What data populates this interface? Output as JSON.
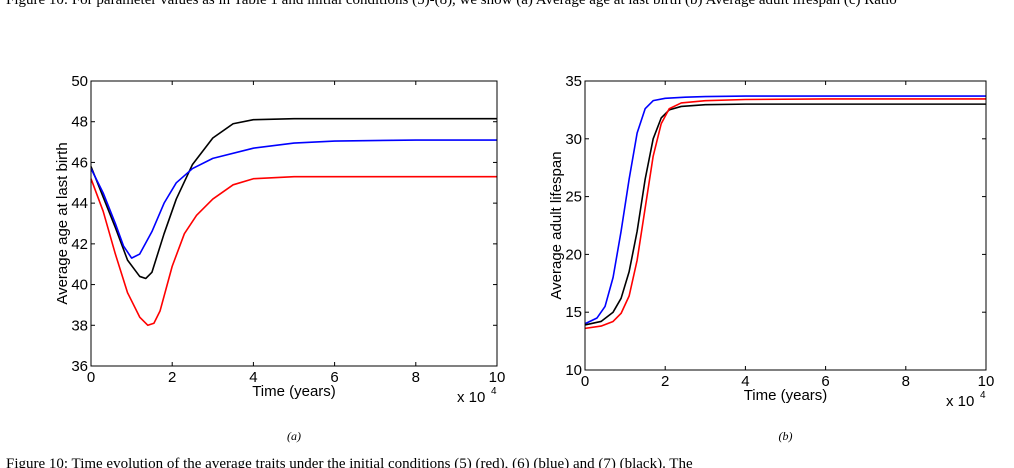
{
  "top_caption_text": "Figure 10: For parameter values as in Table 1 and initial conditions (5)-(8), we show (a) Average age at last birth (b) Average adult lifespan (c) Ratio",
  "bottom_caption_text": "Figure 10: Time evolution of the average traits under the initial conditions (5) (red), (6) (blue) and (7) (black). The",
  "chart_data": [
    {
      "panel": "(a)",
      "type": "line",
      "xlabel": "Time (years)",
      "ylabel": "Average age at last birth",
      "x_multiplier_label": "x 10",
      "x_multiplier_exp": "4",
      "xlim": [
        0,
        10
      ],
      "ylim": [
        36,
        50
      ],
      "xticks": [
        0,
        2,
        4,
        6,
        8,
        10
      ],
      "yticks": [
        36,
        38,
        40,
        42,
        44,
        46,
        48,
        50
      ],
      "grid": false,
      "series": [
        {
          "color": "#000000",
          "x": [
            0,
            0.3,
            0.6,
            0.9,
            1.2,
            1.35,
            1.5,
            1.8,
            2.1,
            2.5,
            3.0,
            3.5,
            4.0,
            5,
            6,
            8,
            10
          ],
          "y": [
            45.8,
            44.3,
            42.8,
            41.2,
            40.4,
            40.3,
            40.6,
            42.5,
            44.2,
            45.9,
            47.2,
            47.9,
            48.1,
            48.15,
            48.15,
            48.15,
            48.15
          ]
        },
        {
          "color": "#0000ff",
          "x": [
            0,
            0.3,
            0.6,
            0.8,
            1.0,
            1.2,
            1.5,
            1.8,
            2.1,
            2.5,
            3.0,
            4.0,
            5,
            6,
            8,
            10
          ],
          "y": [
            45.7,
            44.5,
            43.0,
            41.9,
            41.3,
            41.5,
            42.6,
            44.0,
            45.0,
            45.7,
            46.2,
            46.7,
            46.95,
            47.05,
            47.1,
            47.1
          ]
        },
        {
          "color": "#ff0000",
          "x": [
            0,
            0.3,
            0.6,
            0.9,
            1.2,
            1.4,
            1.55,
            1.7,
            2.0,
            2.3,
            2.6,
            3.0,
            3.5,
            4.0,
            5,
            6,
            8,
            10
          ],
          "y": [
            45.2,
            43.6,
            41.5,
            39.6,
            38.4,
            38.0,
            38.1,
            38.7,
            40.9,
            42.5,
            43.4,
            44.2,
            44.9,
            45.2,
            45.3,
            45.3,
            45.3,
            45.3
          ]
        }
      ]
    },
    {
      "panel": "(b)",
      "type": "line",
      "xlabel": "Time (years)",
      "ylabel": "Average adult lifespan",
      "x_multiplier_label": "x 10",
      "x_multiplier_exp": "4",
      "xlim": [
        0,
        10
      ],
      "ylim": [
        10,
        35
      ],
      "xticks": [
        0,
        2,
        4,
        6,
        8,
        10
      ],
      "yticks": [
        10,
        15,
        20,
        25,
        30,
        35
      ],
      "grid": false,
      "series": [
        {
          "color": "#0000ff",
          "x": [
            0,
            0.3,
            0.5,
            0.7,
            0.9,
            1.1,
            1.3,
            1.5,
            1.7,
            2.0,
            2.5,
            3,
            4,
            6,
            8,
            10
          ],
          "y": [
            14.0,
            14.5,
            15.5,
            18.0,
            22.0,
            26.5,
            30.5,
            32.6,
            33.3,
            33.5,
            33.6,
            33.65,
            33.7,
            33.7,
            33.7,
            33.7
          ]
        },
        {
          "color": "#000000",
          "x": [
            0,
            0.4,
            0.7,
            0.9,
            1.1,
            1.3,
            1.5,
            1.7,
            1.9,
            2.1,
            2.4,
            3,
            4,
            6,
            8,
            10
          ],
          "y": [
            13.9,
            14.2,
            15.0,
            16.2,
            18.5,
            22.0,
            26.5,
            30.0,
            31.8,
            32.5,
            32.8,
            32.95,
            33.0,
            33.0,
            33.0,
            33.0
          ]
        },
        {
          "color": "#ff0000",
          "x": [
            0,
            0.4,
            0.7,
            0.9,
            1.1,
            1.3,
            1.5,
            1.7,
            1.9,
            2.1,
            2.4,
            3,
            4,
            6,
            8,
            10
          ],
          "y": [
            13.6,
            13.8,
            14.2,
            14.9,
            16.4,
            19.5,
            24.0,
            28.5,
            31.3,
            32.6,
            33.1,
            33.3,
            33.4,
            33.45,
            33.45,
            33.45
          ]
        }
      ]
    }
  ]
}
